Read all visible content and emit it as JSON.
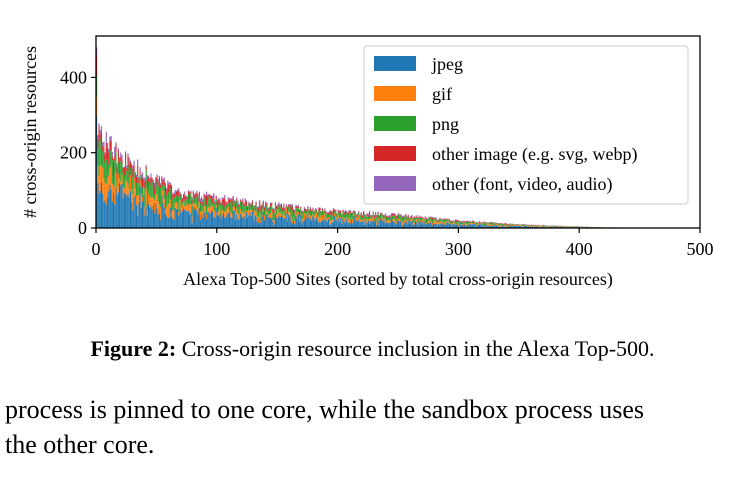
{
  "chart_data": {
    "type": "bar",
    "stacked": true,
    "title": "",
    "xlabel": "Alexa Top-500 Sites (sorted by total cross-origin resources)",
    "ylabel": "# cross-origin resources",
    "xlim": [
      0,
      500
    ],
    "ylim": [
      0,
      510
    ],
    "xticks": [
      0,
      100,
      200,
      300,
      400,
      500
    ],
    "yticks": [
      0,
      200,
      400
    ],
    "grid": false,
    "legend_position": "top-right",
    "colors": {
      "jpeg": "#1f77b4",
      "gif": "#ff7f0e",
      "png": "#2ca02c",
      "other image": "#d62728",
      "other": "#9467bd"
    },
    "legend": [
      "jpeg",
      "gif",
      "png",
      "other image (e.g. svg, webp)",
      "other (font, video, audio)"
    ],
    "approx_total_profile": {
      "rank": [
        1,
        2,
        5,
        10,
        20,
        30,
        50,
        70,
        100,
        150,
        200,
        250,
        300,
        350,
        400,
        420,
        440,
        460,
        500
      ],
      "total": [
        480,
        260,
        240,
        225,
        195,
        170,
        130,
        95,
        80,
        60,
        45,
        35,
        20,
        10,
        4,
        2,
        1,
        0,
        0
      ]
    },
    "approx_composition": {
      "jpeg": 0.45,
      "gif": 0.18,
      "png": 0.22,
      "other image": 0.1,
      "other": 0.05
    }
  },
  "caption": {
    "label": "Figure 2:",
    "text": " Cross-origin resource inclusion in the Alexa Top-500."
  },
  "body_text": {
    "line1": "process is pinned to one core, while the sandbox process uses",
    "line2": "the other core."
  }
}
